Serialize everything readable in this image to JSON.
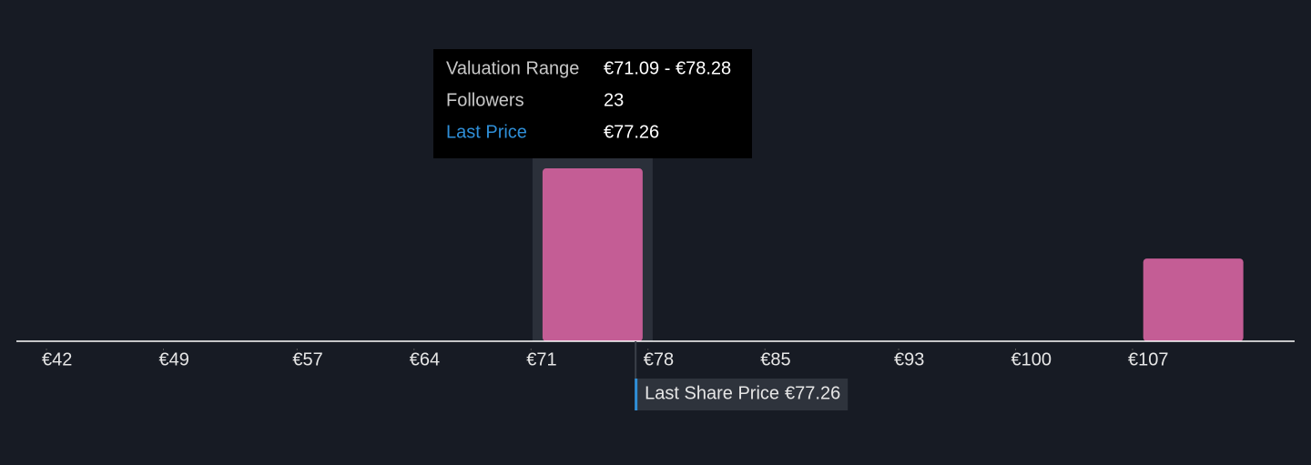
{
  "chart_data": {
    "type": "histogram",
    "bins": [
      42.33,
      49.52,
      56.71,
      63.9,
      71.09,
      78.28,
      85.47,
      92.66,
      99.85,
      107.04,
      114.23
    ],
    "counts": [
      0,
      0,
      0,
      0,
      23,
      0,
      0,
      0,
      0,
      11
    ],
    "color": "#c45d95",
    "highlight_bin": 4,
    "xlim": [
      40.2,
      116.7
    ],
    "ylim": [
      0,
      25
    ],
    "xticks": [
      {
        "value": 42,
        "label": "€42"
      },
      {
        "value": 49,
        "label": "€49"
      },
      {
        "value": 57,
        "label": "€57"
      },
      {
        "value": 64,
        "label": "€64"
      },
      {
        "value": 71,
        "label": "€71"
      },
      {
        "value": 78,
        "label": "€78"
      },
      {
        "value": 85,
        "label": "€85"
      },
      {
        "value": 93,
        "label": "€93"
      },
      {
        "value": 100,
        "label": "€100"
      },
      {
        "value": 107,
        "label": "€107"
      }
    ],
    "last_price": {
      "label": "Last Share Price",
      "value": 77.26,
      "value_label": "€77.26"
    },
    "tooltip": {
      "range_label": "Valuation Range",
      "range_value": "€71.09 - €78.28",
      "followers_label": "Followers",
      "price_label": "Last Price"
    }
  }
}
